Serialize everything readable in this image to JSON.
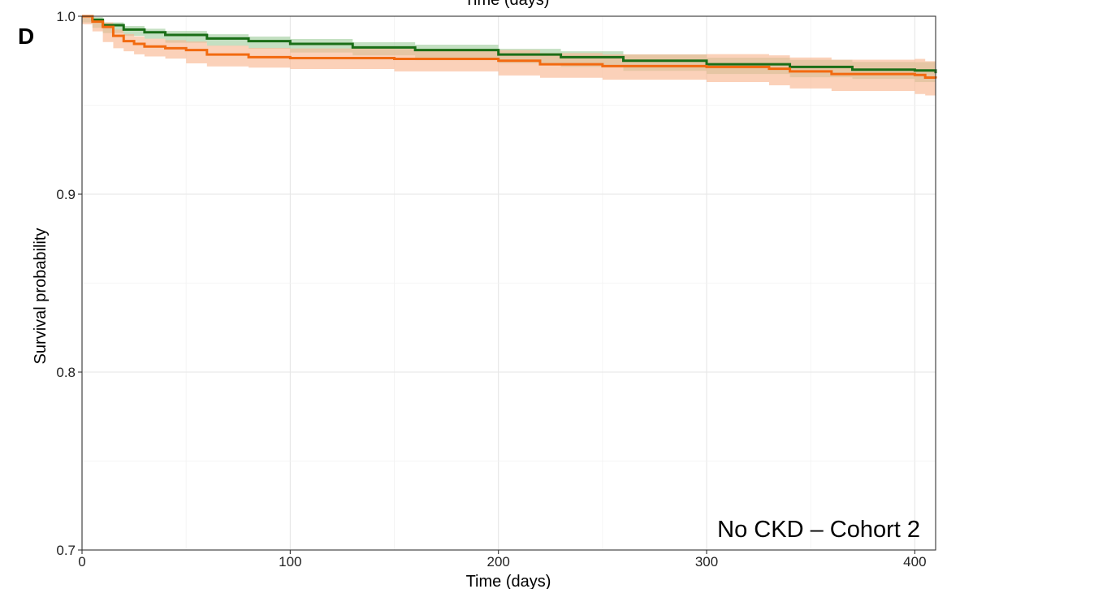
{
  "panel_label": "D",
  "top_cropped_text": "Time (days)",
  "chart_data": {
    "type": "line",
    "title": "",
    "xlabel": "Time (days)",
    "ylabel": "Survival probability",
    "xlim": [
      0,
      410
    ],
    "ylim": [
      0.7,
      1.0
    ],
    "x_ticks": [
      0,
      100,
      200,
      300,
      400
    ],
    "x_tick_labels": [
      "0",
      "100",
      "200",
      "300",
      "400"
    ],
    "y_ticks": [
      0.7,
      0.8,
      0.9,
      1.0
    ],
    "y_tick_labels": [
      "0.7",
      "0.8",
      "0.9",
      "1.0"
    ],
    "grid": true,
    "annotation": "No CKD – Cohort 2",
    "series": [
      {
        "color": "#1a6e17",
        "band_color": "#a5cfa2",
        "x": [
          0,
          5,
          10,
          20,
          30,
          40,
          60,
          80,
          100,
          130,
          160,
          200,
          230,
          260,
          300,
          340,
          370,
          400,
          410
        ],
        "y": [
          1.0,
          0.998,
          0.995,
          0.9925,
          0.991,
          0.9895,
          0.9875,
          0.986,
          0.9845,
          0.9825,
          0.981,
          0.9785,
          0.977,
          0.975,
          0.973,
          0.9715,
          0.97,
          0.9695,
          0.968
        ],
        "lower": [
          1.0,
          0.9965,
          0.9935,
          0.9905,
          0.989,
          0.9873,
          0.9851,
          0.9834,
          0.9818,
          0.9796,
          0.978,
          0.9753,
          0.9737,
          0.9715,
          0.9693,
          0.9675,
          0.9657,
          0.9648,
          0.963
        ],
        "upper": [
          1.0,
          0.9995,
          0.9965,
          0.9945,
          0.993,
          0.9917,
          0.9899,
          0.9886,
          0.9872,
          0.9854,
          0.984,
          0.9817,
          0.9803,
          0.9785,
          0.9767,
          0.9755,
          0.9743,
          0.9742,
          0.9735
        ]
      },
      {
        "color": "#f26a10",
        "band_color": "#f9b894",
        "x": [
          0,
          5,
          10,
          15,
          20,
          25,
          30,
          40,
          50,
          60,
          80,
          100,
          150,
          200,
          220,
          250,
          300,
          330,
          340,
          360,
          400,
          405,
          410
        ],
        "y": [
          1.0,
          0.997,
          0.994,
          0.989,
          0.986,
          0.9845,
          0.983,
          0.982,
          0.981,
          0.9785,
          0.977,
          0.9765,
          0.976,
          0.975,
          0.973,
          0.972,
          0.9715,
          0.9705,
          0.969,
          0.9675,
          0.967,
          0.9655,
          0.965
        ],
        "lower": [
          1.0,
          0.9955,
          0.9915,
          0.9855,
          0.982,
          0.9803,
          0.9786,
          0.9774,
          0.9762,
          0.9735,
          0.9718,
          0.9711,
          0.9703,
          0.969,
          0.9667,
          0.9654,
          0.9643,
          0.963,
          0.9612,
          0.9594,
          0.958,
          0.9563,
          0.9555
        ],
        "upper": [
          1.0,
          0.9985,
          0.9965,
          0.9925,
          0.99,
          0.9887,
          0.9874,
          0.9866,
          0.9858,
          0.9835,
          0.9822,
          0.9819,
          0.9817,
          0.981,
          0.9793,
          0.9786,
          0.9787,
          0.978,
          0.9768,
          0.9756,
          0.976,
          0.9747,
          0.9745
        ]
      }
    ]
  }
}
